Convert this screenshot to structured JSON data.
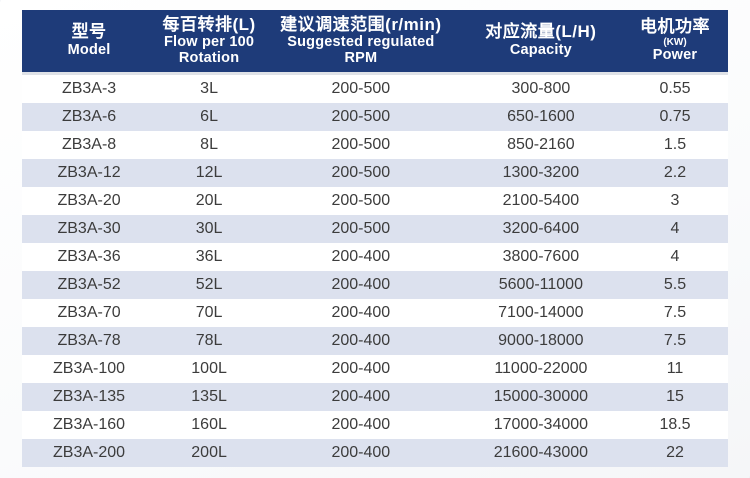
{
  "page": {
    "background": "#fdfdfd"
  },
  "table": {
    "header_bg": "#1e3b79",
    "stripe_bg": "#dce1ee",
    "header_text_color": "#ffffff",
    "body_text_color": "#3c3c3c",
    "columns": [
      {
        "zh": "型号",
        "en_lines": [
          "Model"
        ]
      },
      {
        "zh": "每百转排(L)",
        "en_lines": [
          "Flow per 100",
          "Rotation"
        ]
      },
      {
        "zh": "建议调速范围(r/min)",
        "en_lines": [
          "Suggested regulated",
          "RPM"
        ]
      },
      {
        "zh": "对应流量(L/H)",
        "en_lines": [
          "Capacity"
        ]
      },
      {
        "zh": "电机功率",
        "sub": "(KW)",
        "en_lines": [
          "Power"
        ]
      }
    ],
    "rows": [
      [
        "ZB3A-3",
        "3L",
        "200-500",
        "300-800",
        "0.55"
      ],
      [
        "ZB3A-6",
        "6L",
        "200-500",
        "650-1600",
        "0.75"
      ],
      [
        "ZB3A-8",
        "8L",
        "200-500",
        "850-2160",
        "1.5"
      ],
      [
        "ZB3A-12",
        "12L",
        "200-500",
        "1300-3200",
        "2.2"
      ],
      [
        "ZB3A-20",
        "20L",
        "200-500",
        "2100-5400",
        "3"
      ],
      [
        "ZB3A-30",
        "30L",
        "200-500",
        "3200-6400",
        "4"
      ],
      [
        "ZB3A-36",
        "36L",
        "200-400",
        "3800-7600",
        "4"
      ],
      [
        "ZB3A-52",
        "52L",
        "200-400",
        "5600-11000",
        "5.5"
      ],
      [
        "ZB3A-70",
        "70L",
        "200-400",
        "7100-14000",
        "7.5"
      ],
      [
        "ZB3A-78",
        "78L",
        "200-400",
        "9000-18000",
        "7.5"
      ],
      [
        "ZB3A-100",
        "100L",
        "200-400",
        "11000-22000",
        "11"
      ],
      [
        "ZB3A-135",
        "135L",
        "200-400",
        "15000-30000",
        "15"
      ],
      [
        "ZB3A-160",
        "160L",
        "200-400",
        "17000-34000",
        "18.5"
      ],
      [
        "ZB3A-200",
        "200L",
        "200-400",
        "21600-43000",
        "22"
      ]
    ]
  }
}
